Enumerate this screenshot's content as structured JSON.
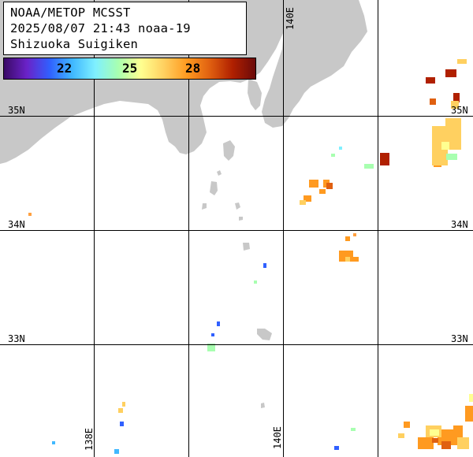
{
  "title_lines": [
    "NOAA/METOP MCSST",
    "2025/08/07 21:43 noaa-19",
    "Shizuoka Suigiken"
  ],
  "colorbar": {
    "ticks": [
      "22",
      "25",
      "28"
    ],
    "gradient_colors": [
      "#3a0a66",
      "#6a22c8",
      "#3060ff",
      "#40b8ff",
      "#7ff0ff",
      "#a8ffb0",
      "#ffff90",
      "#ffd060",
      "#ff9a20",
      "#e06010",
      "#b02000",
      "#6a0a0a"
    ]
  },
  "grid": {
    "lat_labels": [
      "35N",
      "34N",
      "33N"
    ],
    "lon_labels": [
      "138E",
      "140E"
    ]
  },
  "colors": {
    "land": "#c8c8c8",
    "grid_line": "#000000",
    "background": "#ffffff"
  }
}
